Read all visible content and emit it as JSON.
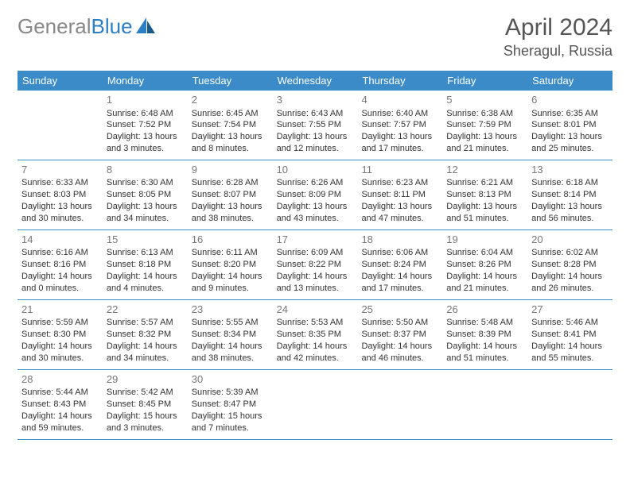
{
  "logo": {
    "text1": "General",
    "text2": "Blue"
  },
  "title": "April 2024",
  "location": "Sheragul, Russia",
  "colors": {
    "header_bg": "#3b8bc9",
    "header_text": "#ffffff",
    "border": "#3b8bc9"
  },
  "day_names": [
    "Sunday",
    "Monday",
    "Tuesday",
    "Wednesday",
    "Thursday",
    "Friday",
    "Saturday"
  ],
  "weeks": [
    [
      null,
      {
        "n": "1",
        "sr": "Sunrise: 6:48 AM",
        "ss": "Sunset: 7:52 PM",
        "d1": "Daylight: 13 hours",
        "d2": "and 3 minutes."
      },
      {
        "n": "2",
        "sr": "Sunrise: 6:45 AM",
        "ss": "Sunset: 7:54 PM",
        "d1": "Daylight: 13 hours",
        "d2": "and 8 minutes."
      },
      {
        "n": "3",
        "sr": "Sunrise: 6:43 AM",
        "ss": "Sunset: 7:55 PM",
        "d1": "Daylight: 13 hours",
        "d2": "and 12 minutes."
      },
      {
        "n": "4",
        "sr": "Sunrise: 6:40 AM",
        "ss": "Sunset: 7:57 PM",
        "d1": "Daylight: 13 hours",
        "d2": "and 17 minutes."
      },
      {
        "n": "5",
        "sr": "Sunrise: 6:38 AM",
        "ss": "Sunset: 7:59 PM",
        "d1": "Daylight: 13 hours",
        "d2": "and 21 minutes."
      },
      {
        "n": "6",
        "sr": "Sunrise: 6:35 AM",
        "ss": "Sunset: 8:01 PM",
        "d1": "Daylight: 13 hours",
        "d2": "and 25 minutes."
      }
    ],
    [
      {
        "n": "7",
        "sr": "Sunrise: 6:33 AM",
        "ss": "Sunset: 8:03 PM",
        "d1": "Daylight: 13 hours",
        "d2": "and 30 minutes."
      },
      {
        "n": "8",
        "sr": "Sunrise: 6:30 AM",
        "ss": "Sunset: 8:05 PM",
        "d1": "Daylight: 13 hours",
        "d2": "and 34 minutes."
      },
      {
        "n": "9",
        "sr": "Sunrise: 6:28 AM",
        "ss": "Sunset: 8:07 PM",
        "d1": "Daylight: 13 hours",
        "d2": "and 38 minutes."
      },
      {
        "n": "10",
        "sr": "Sunrise: 6:26 AM",
        "ss": "Sunset: 8:09 PM",
        "d1": "Daylight: 13 hours",
        "d2": "and 43 minutes."
      },
      {
        "n": "11",
        "sr": "Sunrise: 6:23 AM",
        "ss": "Sunset: 8:11 PM",
        "d1": "Daylight: 13 hours",
        "d2": "and 47 minutes."
      },
      {
        "n": "12",
        "sr": "Sunrise: 6:21 AM",
        "ss": "Sunset: 8:13 PM",
        "d1": "Daylight: 13 hours",
        "d2": "and 51 minutes."
      },
      {
        "n": "13",
        "sr": "Sunrise: 6:18 AM",
        "ss": "Sunset: 8:14 PM",
        "d1": "Daylight: 13 hours",
        "d2": "and 56 minutes."
      }
    ],
    [
      {
        "n": "14",
        "sr": "Sunrise: 6:16 AM",
        "ss": "Sunset: 8:16 PM",
        "d1": "Daylight: 14 hours",
        "d2": "and 0 minutes."
      },
      {
        "n": "15",
        "sr": "Sunrise: 6:13 AM",
        "ss": "Sunset: 8:18 PM",
        "d1": "Daylight: 14 hours",
        "d2": "and 4 minutes."
      },
      {
        "n": "16",
        "sr": "Sunrise: 6:11 AM",
        "ss": "Sunset: 8:20 PM",
        "d1": "Daylight: 14 hours",
        "d2": "and 9 minutes."
      },
      {
        "n": "17",
        "sr": "Sunrise: 6:09 AM",
        "ss": "Sunset: 8:22 PM",
        "d1": "Daylight: 14 hours",
        "d2": "and 13 minutes."
      },
      {
        "n": "18",
        "sr": "Sunrise: 6:06 AM",
        "ss": "Sunset: 8:24 PM",
        "d1": "Daylight: 14 hours",
        "d2": "and 17 minutes."
      },
      {
        "n": "19",
        "sr": "Sunrise: 6:04 AM",
        "ss": "Sunset: 8:26 PM",
        "d1": "Daylight: 14 hours",
        "d2": "and 21 minutes."
      },
      {
        "n": "20",
        "sr": "Sunrise: 6:02 AM",
        "ss": "Sunset: 8:28 PM",
        "d1": "Daylight: 14 hours",
        "d2": "and 26 minutes."
      }
    ],
    [
      {
        "n": "21",
        "sr": "Sunrise: 5:59 AM",
        "ss": "Sunset: 8:30 PM",
        "d1": "Daylight: 14 hours",
        "d2": "and 30 minutes."
      },
      {
        "n": "22",
        "sr": "Sunrise: 5:57 AM",
        "ss": "Sunset: 8:32 PM",
        "d1": "Daylight: 14 hours",
        "d2": "and 34 minutes."
      },
      {
        "n": "23",
        "sr": "Sunrise: 5:55 AM",
        "ss": "Sunset: 8:34 PM",
        "d1": "Daylight: 14 hours",
        "d2": "and 38 minutes."
      },
      {
        "n": "24",
        "sr": "Sunrise: 5:53 AM",
        "ss": "Sunset: 8:35 PM",
        "d1": "Daylight: 14 hours",
        "d2": "and 42 minutes."
      },
      {
        "n": "25",
        "sr": "Sunrise: 5:50 AM",
        "ss": "Sunset: 8:37 PM",
        "d1": "Daylight: 14 hours",
        "d2": "and 46 minutes."
      },
      {
        "n": "26",
        "sr": "Sunrise: 5:48 AM",
        "ss": "Sunset: 8:39 PM",
        "d1": "Daylight: 14 hours",
        "d2": "and 51 minutes."
      },
      {
        "n": "27",
        "sr": "Sunrise: 5:46 AM",
        "ss": "Sunset: 8:41 PM",
        "d1": "Daylight: 14 hours",
        "d2": "and 55 minutes."
      }
    ],
    [
      {
        "n": "28",
        "sr": "Sunrise: 5:44 AM",
        "ss": "Sunset: 8:43 PM",
        "d1": "Daylight: 14 hours",
        "d2": "and 59 minutes."
      },
      {
        "n": "29",
        "sr": "Sunrise: 5:42 AM",
        "ss": "Sunset: 8:45 PM",
        "d1": "Daylight: 15 hours",
        "d2": "and 3 minutes."
      },
      {
        "n": "30",
        "sr": "Sunrise: 5:39 AM",
        "ss": "Sunset: 8:47 PM",
        "d1": "Daylight: 15 hours",
        "d2": "and 7 minutes."
      },
      null,
      null,
      null,
      null
    ]
  ]
}
